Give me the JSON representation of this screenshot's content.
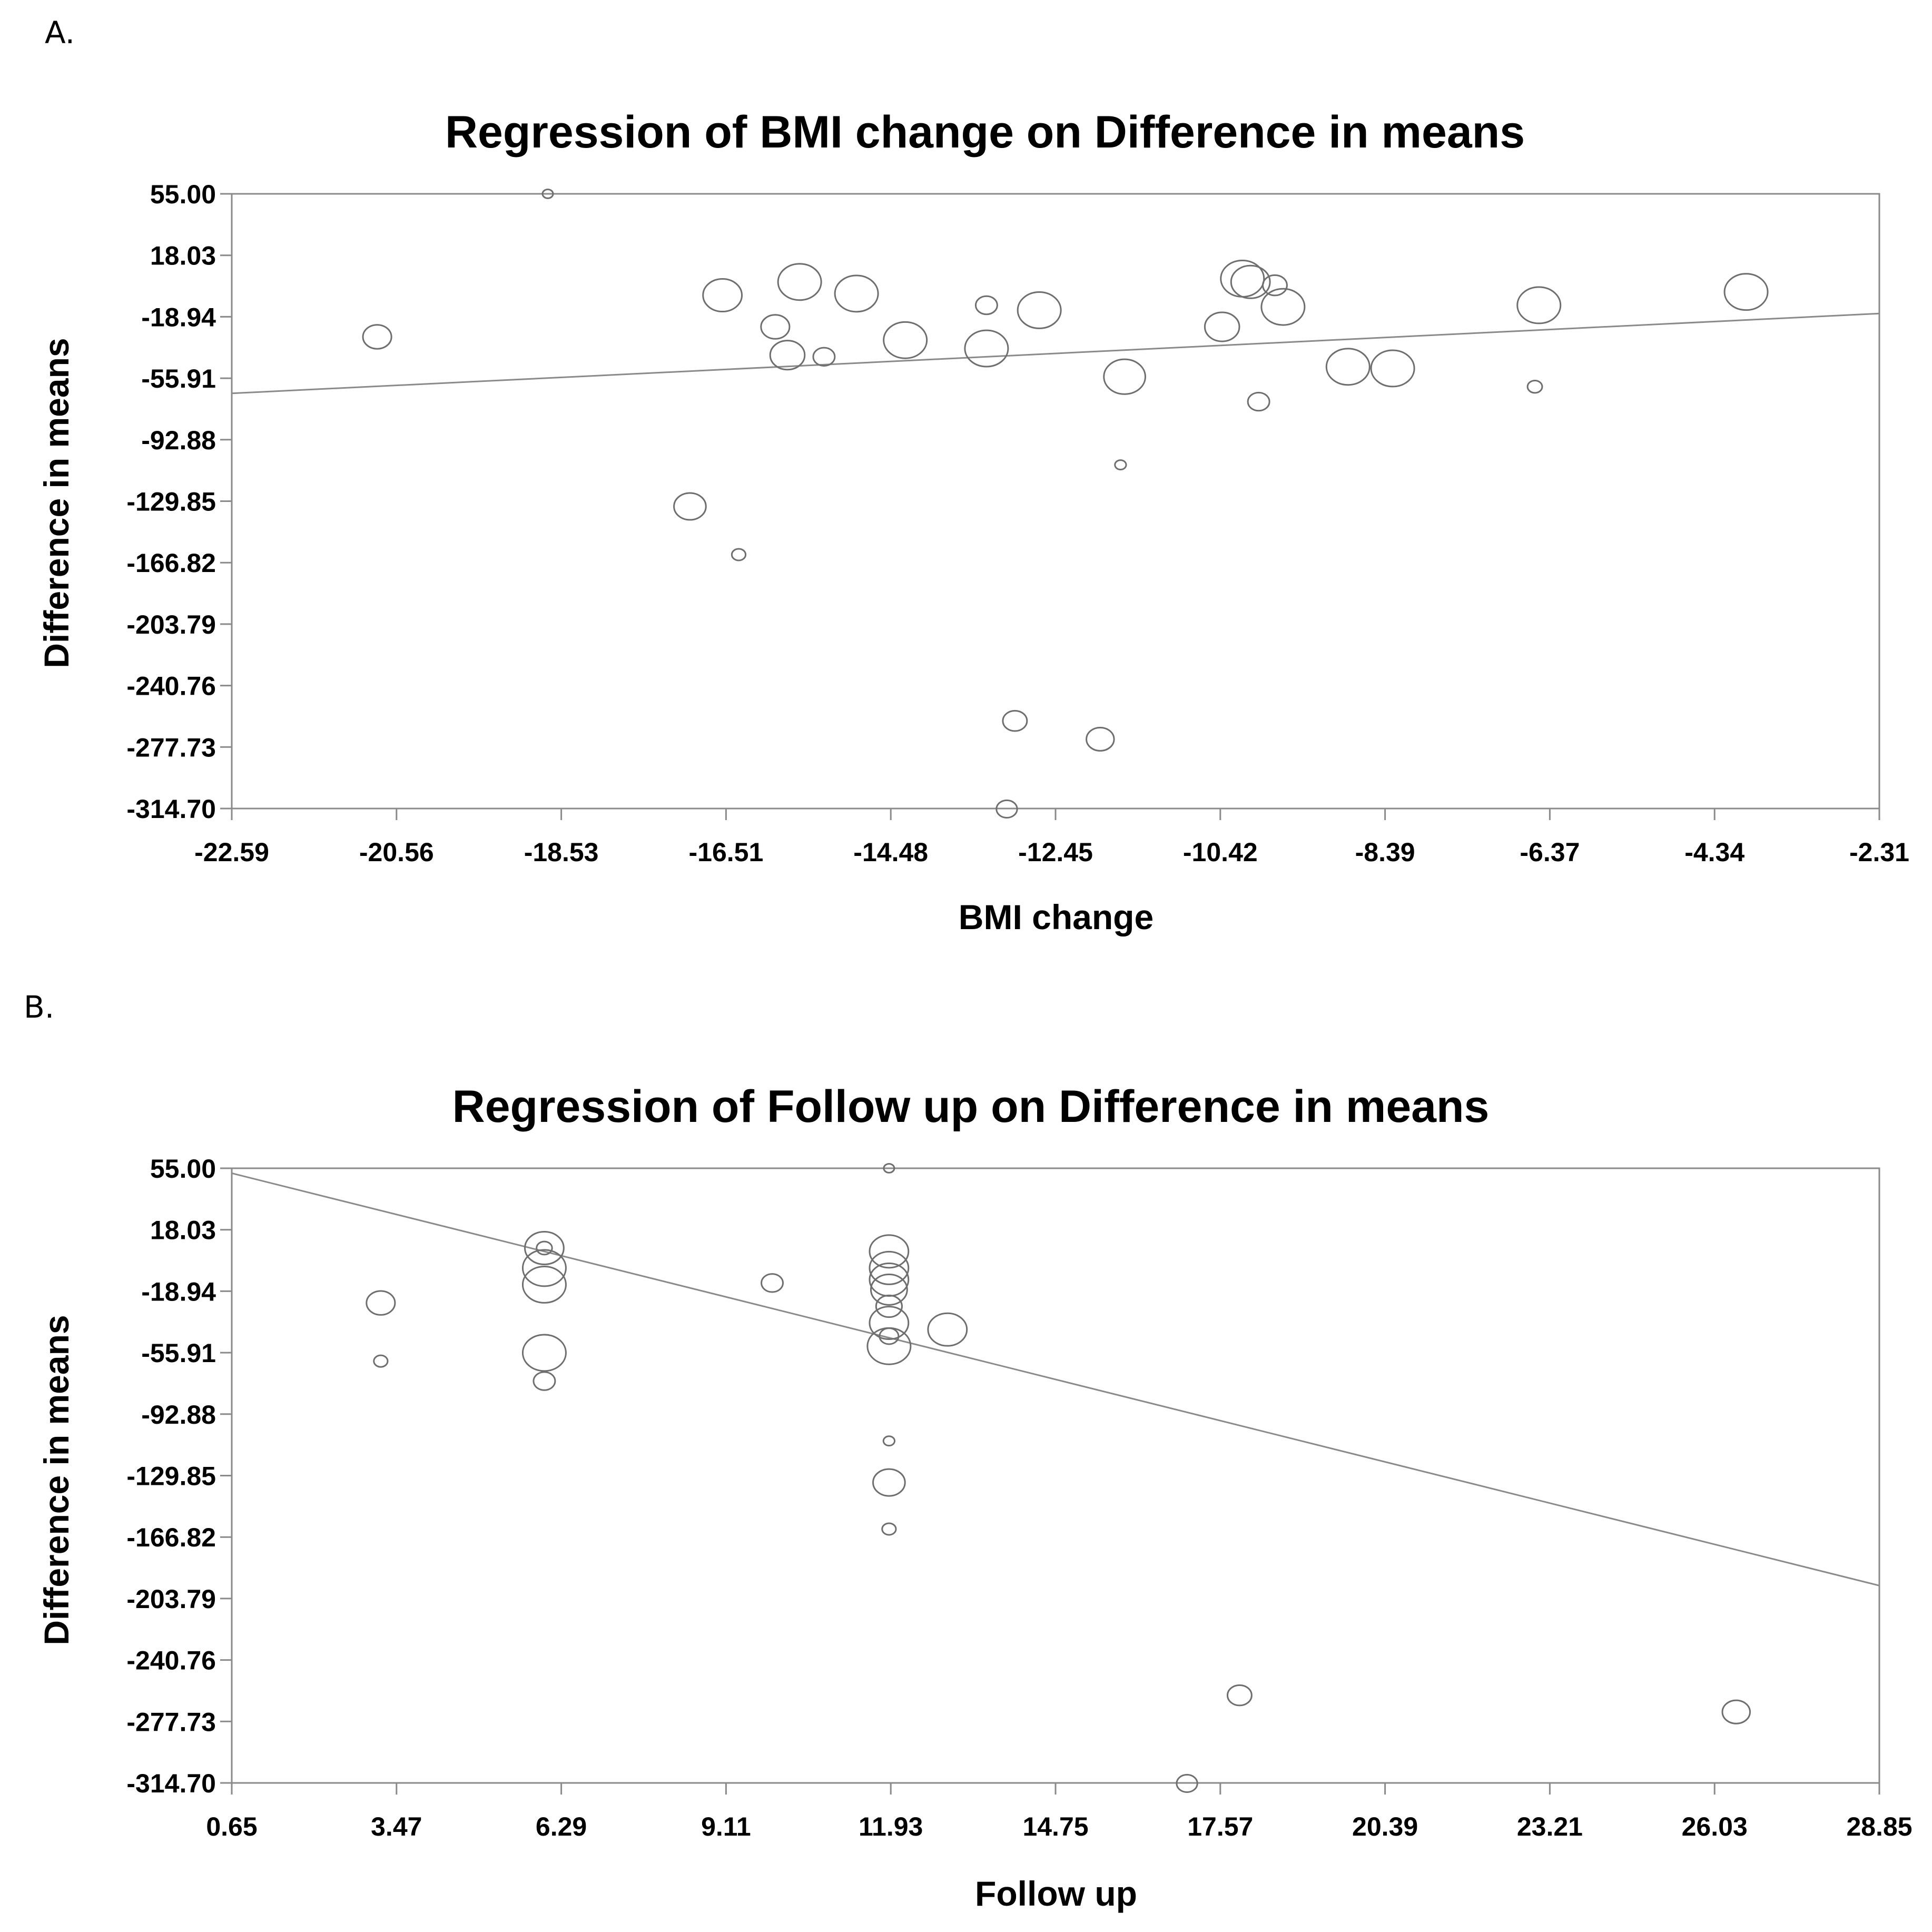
{
  "panels": [
    {
      "label": "A."
    },
    {
      "label": "B."
    }
  ],
  "colors": {
    "frame": "#8a8a8a",
    "bubble": "#6e6e6e",
    "text": "#000000",
    "background": "#ffffff"
  },
  "chart_data": [
    {
      "type": "scatter",
      "title": "Regression of BMI change on Difference in means",
      "xlabel": "BMI change",
      "ylabel": "Difference in means",
      "xlim": [
        -22.59,
        -2.31
      ],
      "ylim": [
        -314.7,
        55.0
      ],
      "x_ticks": [
        "-22.59",
        "-20.56",
        "-18.53",
        "-16.51",
        "-14.48",
        "-12.45",
        "-10.42",
        "-8.39",
        "-6.37",
        "-4.34",
        "-2.31"
      ],
      "y_ticks": [
        "55.00",
        "18.03",
        "-18.94",
        "-55.91",
        "-92.88",
        "-129.85",
        "-166.82",
        "-203.79",
        "-240.76",
        "-277.73",
        "-314.70"
      ],
      "grid": false,
      "regression_line": {
        "x": [
          -22.59,
          -2.31
        ],
        "y": [
          -65.0,
          -17.0
        ]
      },
      "points": [
        {
          "x": -18.7,
          "y": 55.0,
          "r": 0.1
        },
        {
          "x": -20.8,
          "y": -31.0,
          "r": 0.33
        },
        {
          "x": -16.55,
          "y": -6.0,
          "r": 0.45
        },
        {
          "x": -15.6,
          "y": 2.0,
          "r": 0.5
        },
        {
          "x": -14.9,
          "y": -5.0,
          "r": 0.5
        },
        {
          "x": -15.9,
          "y": -25.0,
          "r": 0.33
        },
        {
          "x": -15.75,
          "y": -42.0,
          "r": 0.4
        },
        {
          "x": -15.3,
          "y": -43.0,
          "r": 0.25
        },
        {
          "x": -14.3,
          "y": -33.0,
          "r": 0.5
        },
        {
          "x": -13.3,
          "y": -12.0,
          "r": 0.25
        },
        {
          "x": -13.3,
          "y": -38.0,
          "r": 0.5
        },
        {
          "x": -12.65,
          "y": -15.0,
          "r": 0.5
        },
        {
          "x": -11.6,
          "y": -55.0,
          "r": 0.48
        },
        {
          "x": -11.65,
          "y": -108.0,
          "r": 0.13
        },
        {
          "x": -10.4,
          "y": -25.0,
          "r": 0.4
        },
        {
          "x": -10.15,
          "y": 4.0,
          "r": 0.5
        },
        {
          "x": -10.05,
          "y": 2.0,
          "r": 0.45
        },
        {
          "x": -9.75,
          "y": 0.0,
          "r": 0.28
        },
        {
          "x": -9.65,
          "y": -13.0,
          "r": 0.5
        },
        {
          "x": -9.95,
          "y": -70.0,
          "r": 0.25
        },
        {
          "x": -8.85,
          "y": -49.0,
          "r": 0.5
        },
        {
          "x": -8.3,
          "y": -50.0,
          "r": 0.5
        },
        {
          "x": -6.5,
          "y": -12.0,
          "r": 0.5
        },
        {
          "x": -6.55,
          "y": -61.0,
          "r": 0.17
        },
        {
          "x": -3.95,
          "y": -4.0,
          "r": 0.5
        },
        {
          "x": -16.95,
          "y": -133.0,
          "r": 0.37
        },
        {
          "x": -16.35,
          "y": -162.0,
          "r": 0.16
        },
        {
          "x": -12.95,
          "y": -262.0,
          "r": 0.28
        },
        {
          "x": -11.9,
          "y": -273.0,
          "r": 0.32
        },
        {
          "x": -13.05,
          "y": -315.0,
          "r": 0.24
        }
      ]
    },
    {
      "type": "scatter",
      "title": "Regression of Follow up on Difference in means",
      "xlabel": "Follow up",
      "ylabel": "Difference in means",
      "xlim": [
        0.65,
        28.85
      ],
      "ylim": [
        -314.7,
        55.0
      ],
      "x_ticks": [
        "0.65",
        "3.47",
        "6.29",
        "9.11",
        "11.93",
        "14.75",
        "17.57",
        "20.39",
        "23.21",
        "26.03",
        "28.85"
      ],
      "y_ticks": [
        "55.00",
        "18.03",
        "-18.94",
        "-55.91",
        "-92.88",
        "-129.85",
        "-166.82",
        "-203.79",
        "-240.76",
        "-277.73",
        "-314.70"
      ],
      "grid": false,
      "regression_line": {
        "x": [
          0.65,
          28.85
        ],
        "y": [
          52.0,
          -196.0
        ]
      },
      "points": [
        {
          "x": 11.9,
          "y": 55.0,
          "r": 0.1
        },
        {
          "x": 3.2,
          "y": -26.0,
          "r": 0.33
        },
        {
          "x": 3.2,
          "y": -61.0,
          "r": 0.16
        },
        {
          "x": 6.0,
          "y": 7.0,
          "r": 0.45
        },
        {
          "x": 6.0,
          "y": 7.0,
          "r": 0.18
        },
        {
          "x": 6.0,
          "y": -5.0,
          "r": 0.5
        },
        {
          "x": 6.0,
          "y": -15.0,
          "r": 0.5
        },
        {
          "x": 6.0,
          "y": -56.0,
          "r": 0.5
        },
        {
          "x": 6.0,
          "y": -73.0,
          "r": 0.25
        },
        {
          "x": 9.9,
          "y": -14.0,
          "r": 0.25
        },
        {
          "x": 11.9,
          "y": 5.0,
          "r": 0.45
        },
        {
          "x": 11.9,
          "y": -5.0,
          "r": 0.45
        },
        {
          "x": 11.9,
          "y": -12.0,
          "r": 0.45
        },
        {
          "x": 11.9,
          "y": -18.0,
          "r": 0.42
        },
        {
          "x": 11.9,
          "y": -28.0,
          "r": 0.3
        },
        {
          "x": 11.9,
          "y": -38.0,
          "r": 0.45
        },
        {
          "x": 11.9,
          "y": -46.0,
          "r": 0.22
        },
        {
          "x": 11.9,
          "y": -52.0,
          "r": 0.5
        },
        {
          "x": 11.9,
          "y": -109.0,
          "r": 0.13
        },
        {
          "x": 11.9,
          "y": -134.0,
          "r": 0.37
        },
        {
          "x": 11.9,
          "y": -162.0,
          "r": 0.16
        },
        {
          "x": 12.9,
          "y": -42.0,
          "r": 0.45
        },
        {
          "x": 17.0,
          "y": -315.0,
          "r": 0.24
        },
        {
          "x": 17.9,
          "y": -262.0,
          "r": 0.28
        },
        {
          "x": 26.4,
          "y": -272.0,
          "r": 0.32
        }
      ]
    }
  ]
}
